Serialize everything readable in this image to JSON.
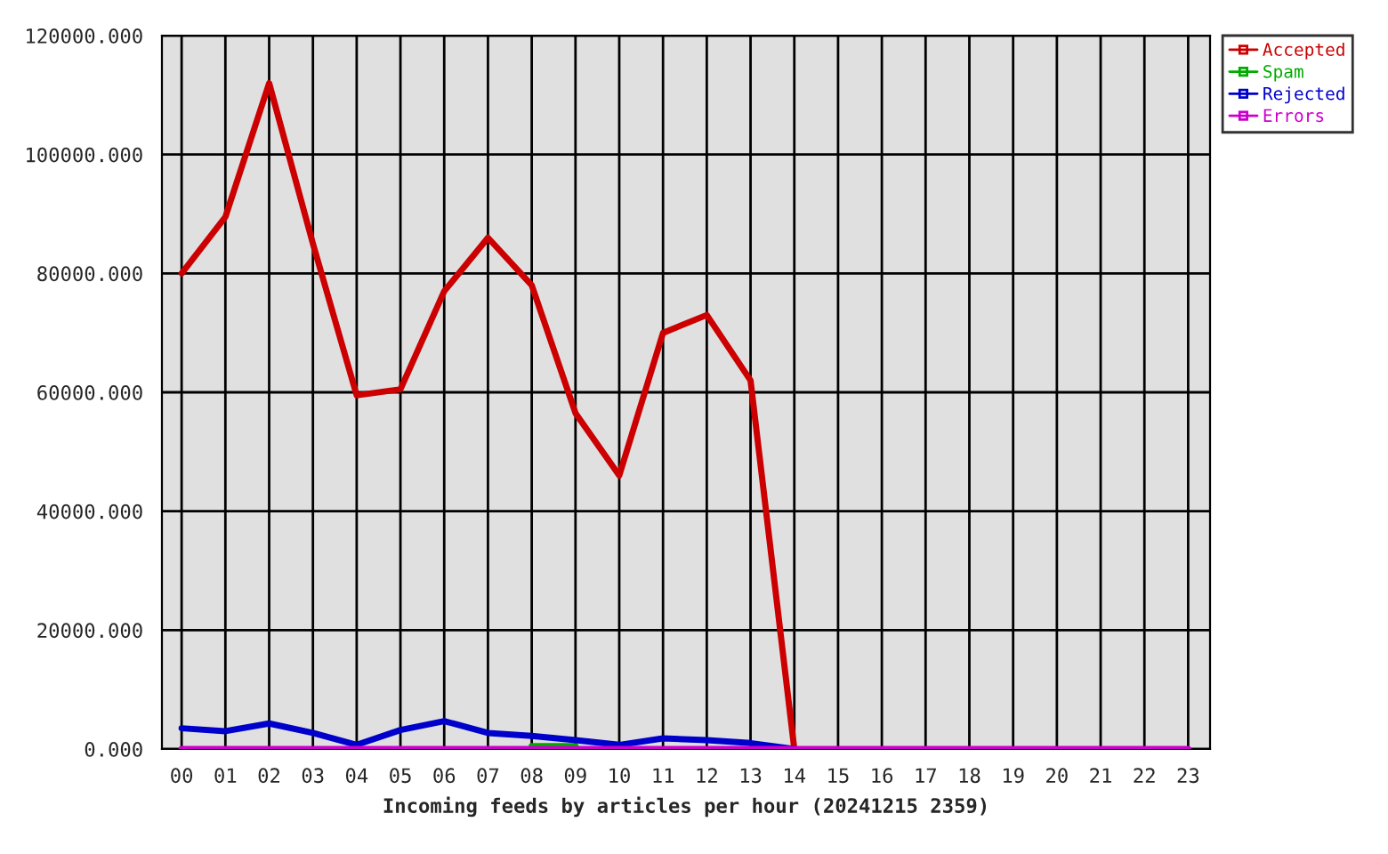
{
  "chart_data": {
    "type": "line",
    "xlabel": "Incoming feeds by articles per hour (20241215 2359)",
    "categories": [
      "00",
      "01",
      "02",
      "03",
      "04",
      "05",
      "06",
      "07",
      "08",
      "09",
      "10",
      "11",
      "12",
      "13",
      "14",
      "15",
      "16",
      "17",
      "18",
      "19",
      "20",
      "21",
      "22",
      "23"
    ],
    "series": [
      {
        "name": "Accepted",
        "color": "#cc0000",
        "values": [
          80000,
          89500,
          112000,
          85000,
          59500,
          60500,
          77000,
          86000,
          78000,
          56500,
          46000,
          70000,
          73000,
          62000,
          0,
          null,
          null,
          null,
          null,
          null,
          null,
          null,
          null,
          null
        ]
      },
      {
        "name": "Spam",
        "color": "#00aa00",
        "values": [
          null,
          null,
          null,
          null,
          null,
          null,
          null,
          null,
          500,
          500,
          null,
          null,
          null,
          null,
          null,
          null,
          null,
          null,
          null,
          null,
          null,
          null,
          null,
          null
        ]
      },
      {
        "name": "Rejected",
        "color": "#0000cc",
        "values": [
          3500,
          3000,
          4300,
          2700,
          700,
          3200,
          4700,
          2700,
          2200,
          1500,
          700,
          1800,
          1500,
          1000,
          0,
          null,
          null,
          null,
          null,
          null,
          null,
          null,
          null,
          null
        ]
      },
      {
        "name": "Errors",
        "color": "#cc00cc",
        "values": [
          0,
          0,
          0,
          0,
          0,
          0,
          0,
          0,
          0,
          0,
          0,
          0,
          0,
          0,
          0,
          0,
          0,
          0,
          0,
          0,
          0,
          0,
          0,
          0
        ]
      }
    ],
    "ylim": [
      0,
      120000
    ],
    "yticks": [
      {
        "value": 0,
        "label": "0.000"
      },
      {
        "value": 20000,
        "label": "20000.000"
      },
      {
        "value": 40000,
        "label": "40000.000"
      },
      {
        "value": 60000,
        "label": "60000.000"
      },
      {
        "value": 80000,
        "label": "80000.000"
      },
      {
        "value": 100000,
        "label": "100000.000"
      },
      {
        "value": 120000,
        "label": "120000.000"
      }
    ],
    "grid": true,
    "legend": "top right",
    "marker": "none",
    "line_style": "solid"
  }
}
